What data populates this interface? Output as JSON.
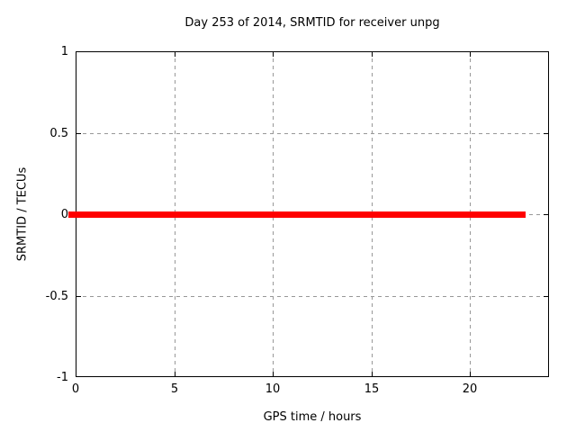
{
  "chart_data": {
    "type": "line",
    "title": "Day 253 of 2014, SRMTID for receiver unpg",
    "xlabel": "GPS time / hours",
    "ylabel": "SRMTID / TECUs",
    "xlim": [
      0,
      24
    ],
    "ylim": [
      -1,
      1
    ],
    "xticks": [
      {
        "value": 0,
        "label": "0"
      },
      {
        "value": 5,
        "label": "5"
      },
      {
        "value": 10,
        "label": "10"
      },
      {
        "value": 15,
        "label": "15"
      },
      {
        "value": 20,
        "label": "20"
      }
    ],
    "yticks": [
      {
        "value": 1,
        "label": "1"
      },
      {
        "value": 0.5,
        "label": "0.5"
      },
      {
        "value": 0,
        "label": "0"
      },
      {
        "value": -0.5,
        "label": "-0.5"
      },
      {
        "value": -1,
        "label": "-1"
      }
    ],
    "grid": true,
    "legend_position": "none",
    "series": [
      {
        "name": "SRMTID",
        "color": "#ff0000",
        "x": [
          0,
          22.8
        ],
        "y": [
          0,
          0
        ]
      }
    ]
  },
  "colors": {
    "background": "#ffffff",
    "plot_border": "#000000",
    "grid": "#989898",
    "text": "#000000",
    "series": "#ff0000"
  }
}
